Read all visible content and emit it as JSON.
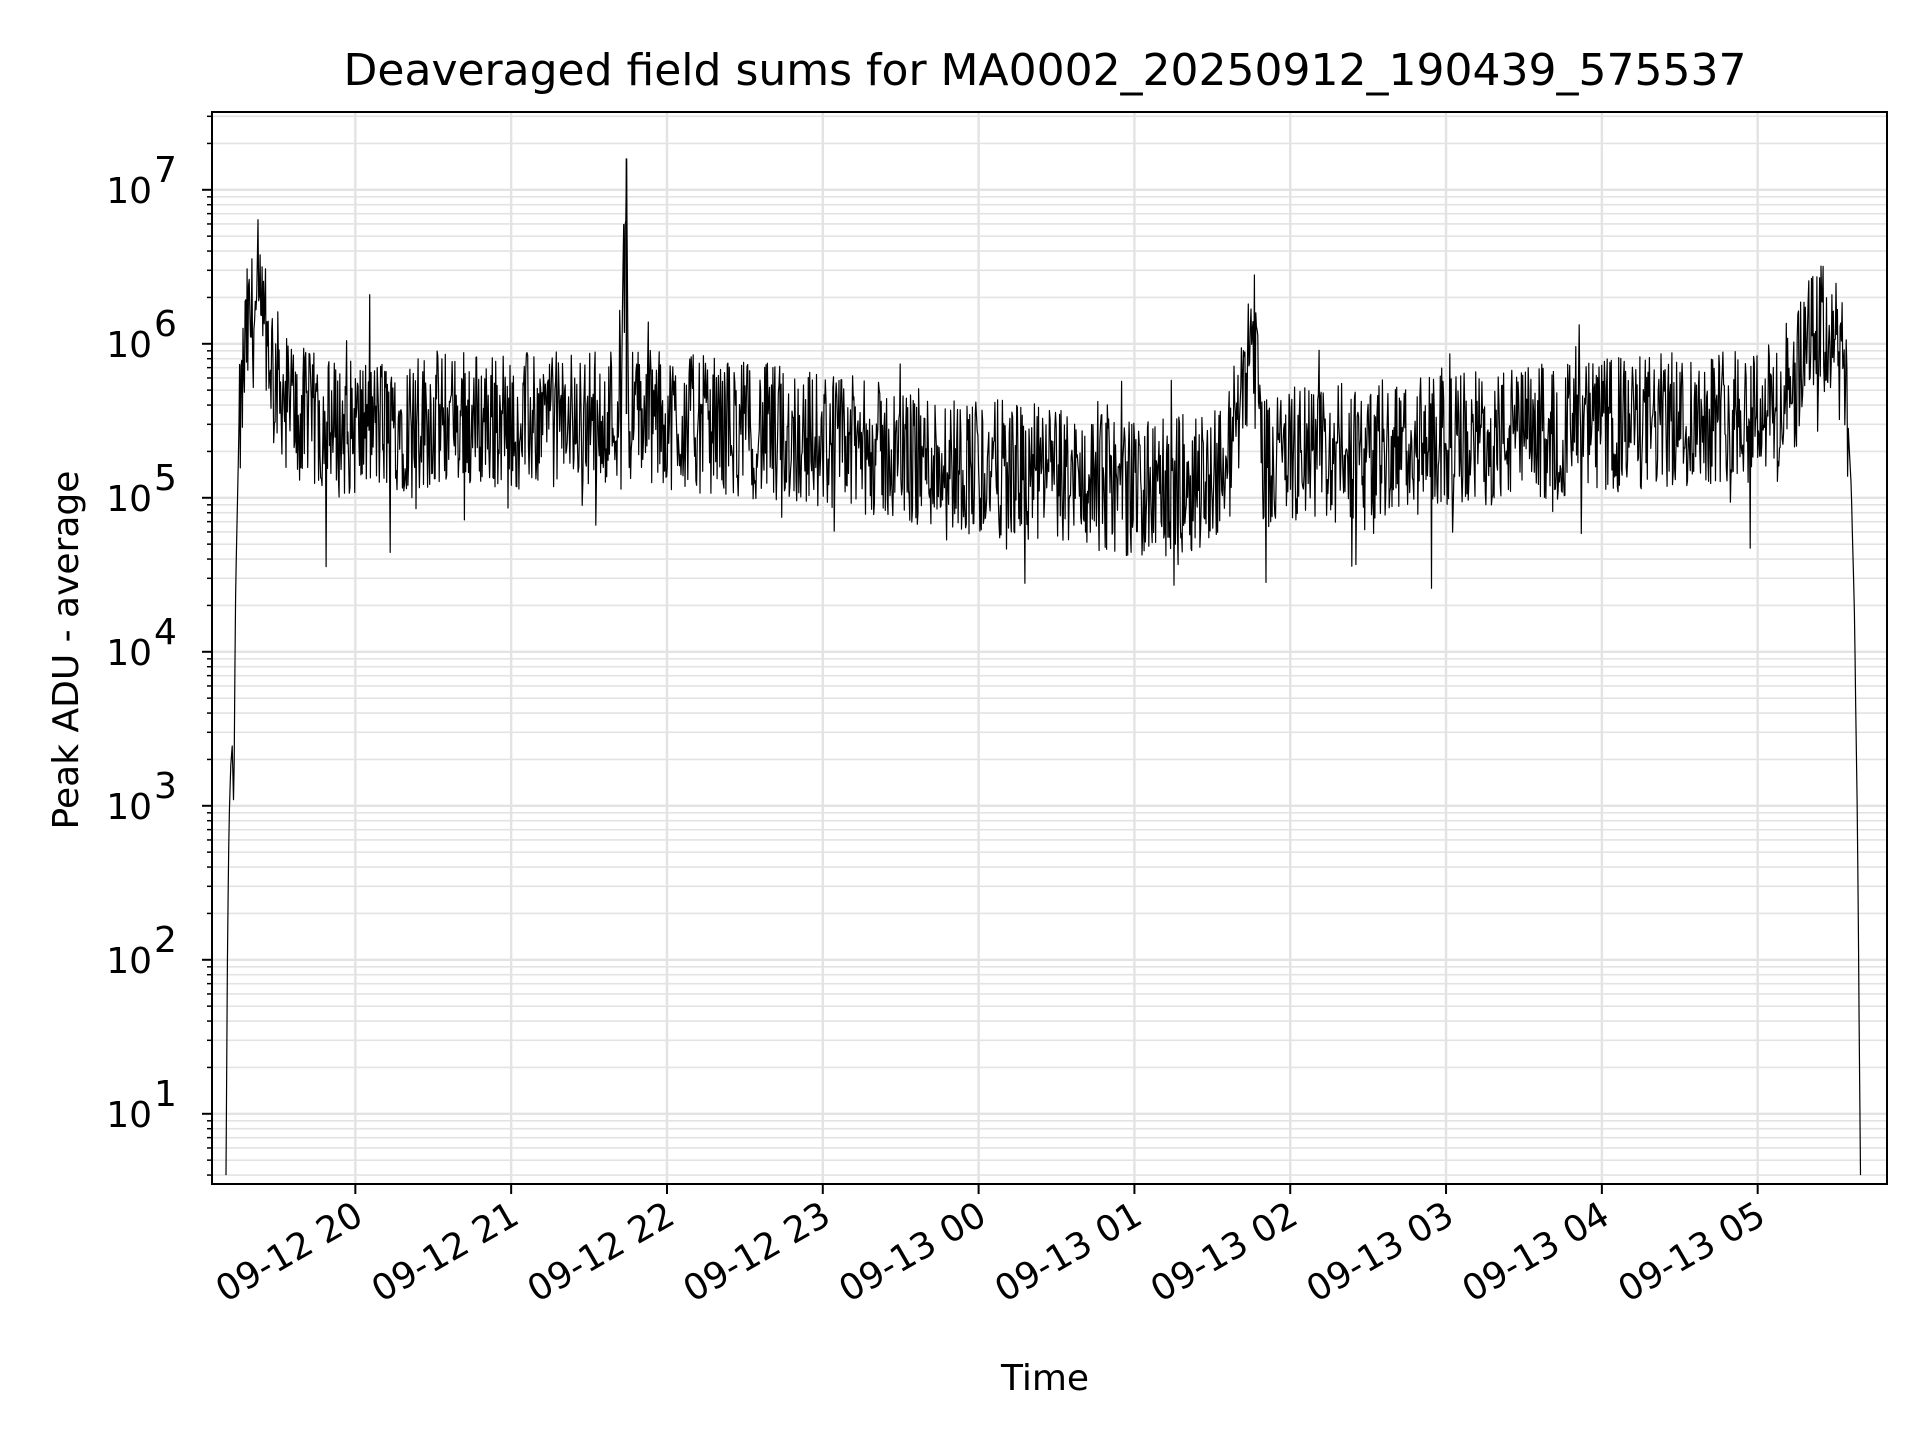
{
  "chart_data": {
    "type": "line",
    "title": "Deaveraged field sums for MA0002_20250912_190439_575537",
    "xlabel": "Time",
    "ylabel": "Peak ADU - average",
    "yscale": "log",
    "grid": true,
    "x_ticks": [
      "09-12 20",
      "09-12 21",
      "09-12 22",
      "09-12 23",
      "09-13 00",
      "09-13 01",
      "09-13 02",
      "09-13 03",
      "09-13 04",
      "09-13 05"
    ],
    "x_tick_hours": [
      20,
      21,
      22,
      23,
      24,
      25,
      26,
      27,
      28,
      29
    ],
    "xlim_hours": [
      19.08,
      29.83
    ],
    "y_ticks": [
      {
        "value": 10,
        "base": "10",
        "exp": "1"
      },
      {
        "value": 100,
        "base": "10",
        "exp": "2"
      },
      {
        "value": 1000,
        "base": "10",
        "exp": "3"
      },
      {
        "value": 10000,
        "base": "10",
        "exp": "4"
      },
      {
        "value": 100000,
        "base": "10",
        "exp": "5"
      },
      {
        "value": 1000000,
        "base": "10",
        "exp": "6"
      },
      {
        "value": 10000000,
        "base": "10",
        "exp": "7"
      }
    ],
    "ylim": [
      3.5,
      32000000
    ],
    "series": [
      {
        "name": "Peak ADU - average",
        "color": "#000000",
        "hours": [
          19.17,
          19.18,
          19.19,
          19.2,
          19.21,
          19.22,
          19.23,
          19.25,
          19.28,
          19.3,
          19.33,
          19.36,
          19.4,
          19.45,
          19.5,
          19.55,
          19.6,
          19.7,
          19.8,
          19.9,
          20.0,
          20.25,
          20.5,
          20.75,
          21.0,
          21.25,
          21.5,
          21.7,
          21.73,
          21.74,
          21.75,
          21.76,
          21.78,
          22.0,
          22.5,
          23.0,
          23.5,
          24.0,
          24.5,
          24.9,
          25.1,
          25.4,
          25.6,
          25.72,
          25.76,
          25.78,
          25.82,
          26.0,
          26.5,
          27.0,
          27.5,
          28.0,
          28.5,
          28.75,
          28.9,
          29.0,
          29.1,
          29.2,
          29.3,
          29.35,
          29.4,
          29.45,
          29.5,
          29.55,
          29.58,
          29.6,
          29.62,
          29.64,
          29.66
        ],
        "values": [
          4,
          150,
          800,
          1800,
          2500,
          900,
          20000,
          200000,
          600000,
          1100000,
          1400000,
          1500000,
          1300000,
          900000,
          600000,
          450000,
          380000,
          320000,
          300000,
          280000,
          290000,
          300000,
          320000,
          330000,
          310000,
          320000,
          340000,
          370000,
          3900000,
          16000000,
          380000,
          370000,
          360000,
          320000,
          280000,
          240000,
          190000,
          160000,
          140000,
          120000,
          110000,
          130000,
          170000,
          800000,
          1200000,
          1100000,
          180000,
          190000,
          200000,
          230000,
          260000,
          290000,
          320000,
          350000,
          380000,
          390000,
          370000,
          400000,
          800000,
          1100000,
          1200000,
          1150000,
          1050000,
          600000,
          300000,
          120000,
          20000,
          800,
          4
        ],
        "noise": {
          "amplitude_decades": 0.45,
          "outlier_min": 25000,
          "spike_max": 1800000
        },
        "points": 2400
      }
    ]
  }
}
